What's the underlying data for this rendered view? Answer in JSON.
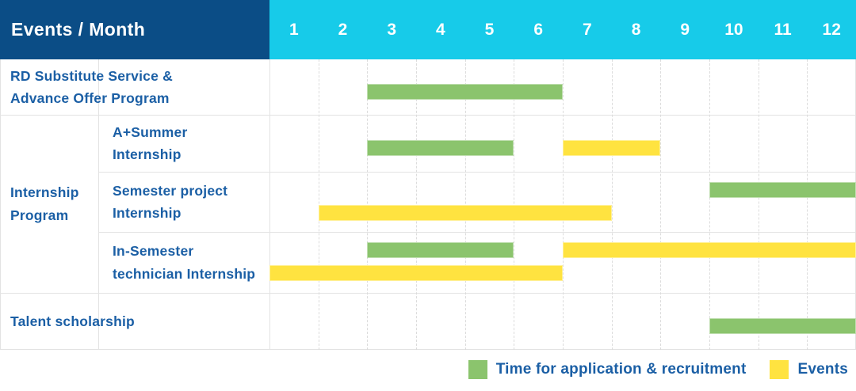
{
  "header": {
    "title": "Events / Month",
    "months": [
      "1",
      "2",
      "3",
      "4",
      "5",
      "6",
      "7",
      "8",
      "9",
      "10",
      "11",
      "12"
    ]
  },
  "colors": {
    "header_bg": "#0b4d86",
    "month_header_bg": "#17cbe9",
    "application_green": "#8bc46d",
    "event_yellow": "#ffe340",
    "label_blue": "#1b5fa5",
    "grid_line": "#e3e3e3"
  },
  "chart_data": {
    "type": "bar",
    "subtype": "gantt-timeline",
    "title": "Events / Month",
    "x_axis": {
      "label": "Month",
      "categories": [
        1,
        2,
        3,
        4,
        5,
        6,
        7,
        8,
        9,
        10,
        11,
        12
      ]
    },
    "group_label": {
      "text": "Internship Program",
      "lines": [
        "Internship",
        "Program"
      ]
    },
    "rows": [
      {
        "group": null,
        "label": "RD Substitute Service & Advance Offer Program",
        "lines": [
          "RD Substitute Service &",
          "Advance Offer Program"
        ],
        "bars": [
          {
            "series": "application",
            "start_month": 3,
            "end_month": 6,
            "line": 1
          }
        ]
      },
      {
        "group": "Internship Program",
        "label": "A+Summer Internship",
        "lines": [
          "A+Summer",
          "Internship"
        ],
        "bars": [
          {
            "series": "application",
            "start_month": 3,
            "end_month": 5,
            "line": 1
          },
          {
            "series": "event",
            "start_month": 7,
            "end_month": 8,
            "line": 1
          }
        ]
      },
      {
        "group": "Internship Program",
        "label": "Semester project Internship",
        "lines": [
          "Semester project",
          "Internship"
        ],
        "bars": [
          {
            "series": "application",
            "start_month": 10,
            "end_month": 12,
            "line": 1
          },
          {
            "series": "event",
            "start_month": 2,
            "end_month": 7,
            "line": 2
          }
        ]
      },
      {
        "group": "Internship Program",
        "label": "In-Semester technician Internship",
        "lines": [
          "In-Semester",
          "technician Internship"
        ],
        "bars": [
          {
            "series": "application",
            "start_month": 3,
            "end_month": 5,
            "line": 1
          },
          {
            "series": "event",
            "start_month": 7,
            "end_month": 12,
            "line": 1
          },
          {
            "series": "event",
            "start_month": 1,
            "end_month": 6,
            "line": 2
          }
        ]
      },
      {
        "group": null,
        "label": "Talent scholarship",
        "lines": [
          "Talent scholarship"
        ],
        "bars": [
          {
            "series": "application",
            "start_month": 10,
            "end_month": 12,
            "line": 1
          }
        ]
      }
    ],
    "legend": [
      {
        "series": "application",
        "label": "Time for application & recruitment",
        "color": "#8bc46d"
      },
      {
        "series": "event",
        "label": "Events",
        "color": "#ffe340"
      }
    ]
  }
}
